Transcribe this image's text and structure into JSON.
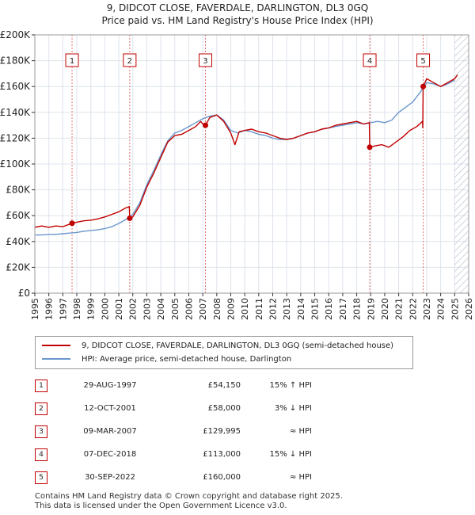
{
  "title_line1": "9, DIDCOT CLOSE, FAVERDALE, DARLINGTON, DL3 0GQ",
  "title_line2": "Price paid vs. HM Land Registry's House Price Index (HPI)",
  "colors": {
    "property": "#c00000",
    "hpi": "#6a96cd",
    "marker_line": "#e07070",
    "future_hatch": "#b0b8c8",
    "grid": "#dde3ec",
    "axis": "#333333"
  },
  "legend": {
    "property_label": "9, DIDCOT CLOSE, FAVERDALE, DARLINGTON, DL3 0GQ (semi-detached house)",
    "hpi_label": "HPI: Average price, semi-detached house, Darlington"
  },
  "sales": [
    {
      "n": "1",
      "date": "29-AUG-1997",
      "price": "£54,150",
      "hpi": "15% ↑ HPI"
    },
    {
      "n": "2",
      "date": "12-OCT-2001",
      "price": "£58,000",
      "hpi": "3% ↓ HPI"
    },
    {
      "n": "3",
      "date": "09-MAR-2007",
      "price": "£129,995",
      "hpi": "≈ HPI"
    },
    {
      "n": "4",
      "date": "07-DEC-2018",
      "price": "£113,000",
      "hpi": "15% ↓ HPI"
    },
    {
      "n": "5",
      "date": "30-SEP-2022",
      "price": "£160,000",
      "hpi": "≈ HPI"
    }
  ],
  "footer": {
    "line1": "Contains HM Land Registry data © Crown copyright and database right 2025.",
    "line2": "This data is licensed under the Open Government Licence v3.0."
  },
  "chart_data": {
    "type": "line",
    "xlim": [
      1995,
      2026
    ],
    "ylim": [
      0,
      200000
    ],
    "x_ticks": [
      "1995",
      "1996",
      "1997",
      "1998",
      "1999",
      "2000",
      "2001",
      "2002",
      "2003",
      "2004",
      "2005",
      "2006",
      "2007",
      "2008",
      "2009",
      "2010",
      "2011",
      "2012",
      "2013",
      "2014",
      "2015",
      "2016",
      "2017",
      "2018",
      "2019",
      "2020",
      "2021",
      "2022",
      "2023",
      "2024",
      "2025",
      "2026"
    ],
    "y_ticks": [
      {
        "value": 0,
        "label": "£0"
      },
      {
        "value": 20000,
        "label": "£20K"
      },
      {
        "value": 40000,
        "label": "£40K"
      },
      {
        "value": 60000,
        "label": "£60K"
      },
      {
        "value": 80000,
        "label": "£80K"
      },
      {
        "value": 100000,
        "label": "£100K"
      },
      {
        "value": 120000,
        "label": "£120K"
      },
      {
        "value": 140000,
        "label": "£140K"
      },
      {
        "value": 160000,
        "label": "£160K"
      },
      {
        "value": 180000,
        "label": "£180K"
      },
      {
        "value": 200000,
        "label": "£200K"
      }
    ],
    "grid": true,
    "future_start": 2025.0,
    "series": [
      {
        "name": "9, DIDCOT CLOSE, FAVERDALE, DARLINGTON, DL3 0GQ (semi-detached house)",
        "points": [
          [
            1995.0,
            51000
          ],
          [
            1995.5,
            52000
          ],
          [
            1996.0,
            51000
          ],
          [
            1996.5,
            52000
          ],
          [
            1997.0,
            51500
          ],
          [
            1997.5,
            53500
          ],
          [
            1997.66,
            54150
          ],
          [
            1998.0,
            55000
          ],
          [
            1998.5,
            56000
          ],
          [
            1999.0,
            56500
          ],
          [
            1999.5,
            57500
          ],
          [
            2000.0,
            59000
          ],
          [
            2000.5,
            61000
          ],
          [
            2001.0,
            63000
          ],
          [
            2001.5,
            66000
          ],
          [
            2001.75,
            67000
          ],
          [
            2001.78,
            58000
          ],
          [
            2002.0,
            59000
          ],
          [
            2002.5,
            68000
          ],
          [
            2003.0,
            82000
          ],
          [
            2003.5,
            93000
          ],
          [
            2004.0,
            105000
          ],
          [
            2004.5,
            117000
          ],
          [
            2005.0,
            122000
          ],
          [
            2005.5,
            123000
          ],
          [
            2006.0,
            126000
          ],
          [
            2006.5,
            129000
          ],
          [
            2006.85,
            133000
          ],
          [
            2007.0,
            131000
          ],
          [
            2007.19,
            129995
          ],
          [
            2007.5,
            136000
          ],
          [
            2008.0,
            138000
          ],
          [
            2008.5,
            133000
          ],
          [
            2009.0,
            124000
          ],
          [
            2009.3,
            115000
          ],
          [
            2009.6,
            125000
          ],
          [
            2010.0,
            126000
          ],
          [
            2010.5,
            127000
          ],
          [
            2011.0,
            125000
          ],
          [
            2011.5,
            124000
          ],
          [
            2012.0,
            122000
          ],
          [
            2012.5,
            120000
          ],
          [
            2013.0,
            119000
          ],
          [
            2013.5,
            120000
          ],
          [
            2014.0,
            122000
          ],
          [
            2014.5,
            124000
          ],
          [
            2015.0,
            125000
          ],
          [
            2015.5,
            127000
          ],
          [
            2016.0,
            128000
          ],
          [
            2016.5,
            130000
          ],
          [
            2017.0,
            131000
          ],
          [
            2017.5,
            132000
          ],
          [
            2018.0,
            133000
          ],
          [
            2018.5,
            131000
          ],
          [
            2018.9,
            132000
          ],
          [
            2018.93,
            113000
          ],
          [
            2019.3,
            114000
          ],
          [
            2019.8,
            115000
          ],
          [
            2020.3,
            113000
          ],
          [
            2020.8,
            117000
          ],
          [
            2021.3,
            121000
          ],
          [
            2021.8,
            126000
          ],
          [
            2022.3,
            129000
          ],
          [
            2022.7,
            133000
          ],
          [
            2022.72,
            128000
          ],
          [
            2022.75,
            160000
          ],
          [
            2023.0,
            166000
          ],
          [
            2023.5,
            163000
          ],
          [
            2024.0,
            160000
          ],
          [
            2024.5,
            163000
          ],
          [
            2025.0,
            166000
          ],
          [
            2025.2,
            169000
          ]
        ]
      },
      {
        "name": "HPI: Average price, semi-detached house, Darlington",
        "points": [
          [
            1995.0,
            45000
          ],
          [
            1995.5,
            45000
          ],
          [
            1996.0,
            45500
          ],
          [
            1996.5,
            45500
          ],
          [
            1997.0,
            46000
          ],
          [
            1997.5,
            46500
          ],
          [
            1998.0,
            47000
          ],
          [
            1998.5,
            48000
          ],
          [
            1999.0,
            48500
          ],
          [
            1999.5,
            49000
          ],
          [
            2000.0,
            50000
          ],
          [
            2000.5,
            51500
          ],
          [
            2001.0,
            54000
          ],
          [
            2001.5,
            57000
          ],
          [
            2002.0,
            61000
          ],
          [
            2002.5,
            70000
          ],
          [
            2003.0,
            84000
          ],
          [
            2003.5,
            95000
          ],
          [
            2004.0,
            107000
          ],
          [
            2004.5,
            118000
          ],
          [
            2005.0,
            124000
          ],
          [
            2005.5,
            126000
          ],
          [
            2006.0,
            129000
          ],
          [
            2006.5,
            132000
          ],
          [
            2007.0,
            135000
          ],
          [
            2007.5,
            137000
          ],
          [
            2008.0,
            138000
          ],
          [
            2008.5,
            134000
          ],
          [
            2009.0,
            126000
          ],
          [
            2009.5,
            124000
          ],
          [
            2010.0,
            126000
          ],
          [
            2010.5,
            125000
          ],
          [
            2011.0,
            123000
          ],
          [
            2011.5,
            122000
          ],
          [
            2012.0,
            120000
          ],
          [
            2012.5,
            119000
          ],
          [
            2013.0,
            119000
          ],
          [
            2013.5,
            120000
          ],
          [
            2014.0,
            122000
          ],
          [
            2014.5,
            124000
          ],
          [
            2015.0,
            125000
          ],
          [
            2015.5,
            127000
          ],
          [
            2016.0,
            128000
          ],
          [
            2016.5,
            129000
          ],
          [
            2017.0,
            130000
          ],
          [
            2017.5,
            131000
          ],
          [
            2018.0,
            132000
          ],
          [
            2018.5,
            131000
          ],
          [
            2019.0,
            132000
          ],
          [
            2019.5,
            133000
          ],
          [
            2020.0,
            132000
          ],
          [
            2020.5,
            134000
          ],
          [
            2021.0,
            140000
          ],
          [
            2021.5,
            144000
          ],
          [
            2022.0,
            148000
          ],
          [
            2022.5,
            155000
          ],
          [
            2023.0,
            163000
          ],
          [
            2023.5,
            162000
          ],
          [
            2024.0,
            160000
          ],
          [
            2024.5,
            162000
          ],
          [
            2025.0,
            165000
          ]
        ]
      }
    ],
    "sale_markers": [
      {
        "label": "1",
        "x": 1997.66,
        "y": 54150
      },
      {
        "label": "2",
        "x": 2001.78,
        "y": 58000
      },
      {
        "label": "3",
        "x": 2007.19,
        "y": 129995
      },
      {
        "label": "4",
        "x": 2018.93,
        "y": 113000
      },
      {
        "label": "5",
        "x": 2022.75,
        "y": 160000
      }
    ]
  }
}
